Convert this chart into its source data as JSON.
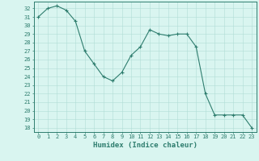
{
  "x": [
    0,
    1,
    2,
    3,
    4,
    5,
    6,
    7,
    8,
    9,
    10,
    11,
    12,
    13,
    14,
    15,
    16,
    17,
    18,
    19,
    20,
    21,
    22,
    23
  ],
  "y": [
    31.0,
    32.0,
    32.3,
    31.8,
    30.5,
    27.0,
    25.5,
    24.0,
    23.5,
    24.5,
    26.5,
    27.5,
    29.5,
    29.0,
    28.8,
    29.0,
    29.0,
    27.5,
    22.0,
    19.5,
    19.5,
    19.5,
    19.5,
    18.0
  ],
  "line_color": "#2e7d6e",
  "marker": "+",
  "bg_color": "#d9f5f0",
  "grid_color": "#b0ddd6",
  "xlabel": "Humidex (Indice chaleur)",
  "ylim": [
    17.5,
    32.8
  ],
  "xlim": [
    -0.5,
    23.5
  ],
  "yticks": [
    18,
    19,
    20,
    21,
    22,
    23,
    24,
    25,
    26,
    27,
    28,
    29,
    30,
    31,
    32
  ],
  "xticks": [
    0,
    1,
    2,
    3,
    4,
    5,
    6,
    7,
    8,
    9,
    10,
    11,
    12,
    13,
    14,
    15,
    16,
    17,
    18,
    19,
    20,
    21,
    22,
    23
  ],
  "tick_label_size": 5.0,
  "xlabel_size": 6.5
}
